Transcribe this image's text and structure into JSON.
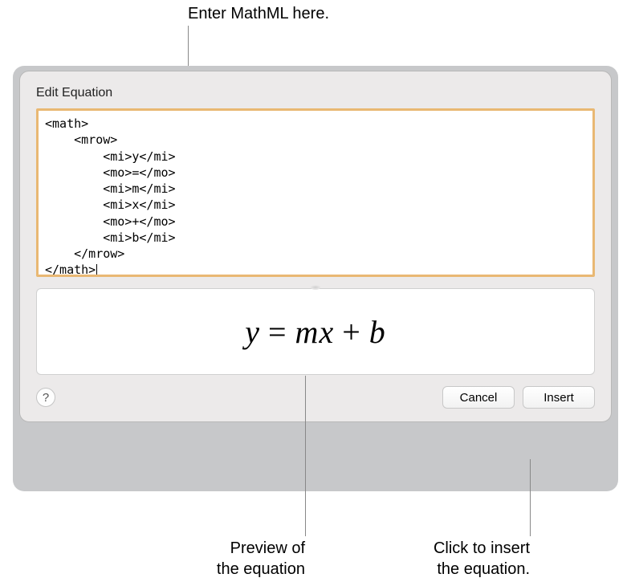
{
  "callouts": {
    "top": "Enter MathML here.",
    "preview": "Preview of\nthe equation",
    "insert": "Click to insert\nthe equation."
  },
  "dialog": {
    "title": "Edit Equation",
    "editor_text": "<math>\n    <mrow>\n        <mi>y</mi>\n        <mo>=</mo>\n        <mi>m</mi>\n        <mi>x</mi>\n        <mo>+</mo>\n        <mi>b</mi>\n    </mrow>\n</math>",
    "editor_text_html": "&lt;math&gt;\n    &lt;mrow&gt;\n        &lt;mi&gt;y&lt;/mi&gt;\n        &lt;mo&gt;=&lt;/mo&gt;\n        &lt;mi&gt;m&lt;/mi&gt;\n        &lt;mi&gt;x&lt;/mi&gt;\n        &lt;mo&gt;+&lt;/mo&gt;\n        &lt;mi&gt;b&lt;/mi&gt;\n    &lt;/mrow&gt;\n&lt;/math&gt;",
    "preview_equation": {
      "y": "y",
      "eq": "=",
      "m": "m",
      "x": "x",
      "plus": "+",
      "b": "b"
    },
    "help_label": "?",
    "cancel_label": "Cancel",
    "insert_label": "Insert"
  },
  "style": {
    "editor_border": "#e9b873",
    "dialog_bg": "#eceaea",
    "shadow_bg": "#c7c8ca",
    "panel_bg": "#ffffff"
  }
}
